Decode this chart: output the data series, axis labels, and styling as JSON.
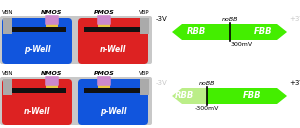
{
  "top_well_left": {
    "color": "#1155dd",
    "label": "p-Well"
  },
  "top_well_right": {
    "color": "#dd2222",
    "label": "n-Well"
  },
  "bot_well_left": {
    "color": "#dd2222",
    "label": "n-Well"
  },
  "bot_well_right": {
    "color": "#1155dd",
    "label": "p-Well"
  },
  "gray_bg": "#c8c8c8",
  "gray_contact": "#aaaaaa",
  "black_box": "#111111",
  "gold_oxide": "#e8c840",
  "pink_gate": "#cc88cc",
  "green_bright": "#44ee00",
  "green_light": "#bbee88",
  "nobb_label": "noBB",
  "rbb_label": "RBB",
  "fbb_label": "FBB",
  "minus3v": "-3V",
  "plus3v": "+3V",
  "top_mv": "300mV",
  "bot_mv": "-300mV",
  "vbn_label": "VBN",
  "vbp_label": "VBP",
  "nmos_label": "NMOS",
  "pmos_label": "PMOS",
  "figsize": [
    3.0,
    1.28
  ],
  "dpi": 100
}
